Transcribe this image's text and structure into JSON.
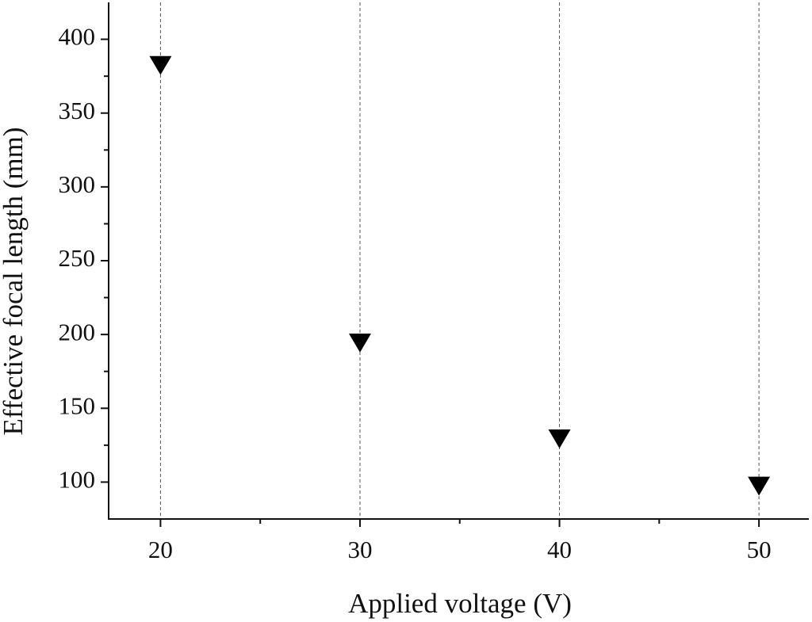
{
  "chart_data": {
    "type": "scatter",
    "x_label": "Applied voltage (V)",
    "y_label": "Effective focal length (mm)",
    "x": [
      20,
      30,
      40,
      50
    ],
    "values": [
      383,
      195,
      130,
      98
    ],
    "color": "#000000",
    "marker": "triangle-down",
    "xlim": [
      17.4,
      52.5
    ],
    "xticks": [
      20,
      30,
      40,
      50
    ],
    "xminorticks": [
      25,
      35,
      45
    ],
    "ylim": [
      75,
      425
    ],
    "yticks": [
      100,
      150,
      200,
      250,
      300,
      350,
      400
    ],
    "yminorticks": [
      125,
      175,
      225,
      275,
      325,
      375
    ],
    "grid": "x"
  }
}
